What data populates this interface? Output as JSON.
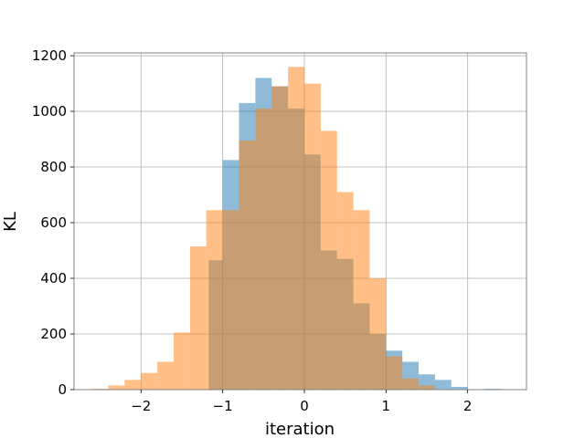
{
  "chart_data": {
    "type": "bar",
    "title": "",
    "xlabel": "iteration",
    "ylabel": "KL",
    "xlim": [
      -2.82,
      2.72
    ],
    "ylim": [
      0,
      1210
    ],
    "grid": true,
    "legend": "none",
    "xticks": [
      -2,
      -1,
      0,
      1,
      2
    ],
    "xtick_labels": [
      "−2",
      "−1",
      "0",
      "1",
      "2"
    ],
    "yticks": [
      0,
      200,
      400,
      600,
      800,
      1000,
      1200
    ],
    "ytick_labels": [
      "0",
      "200",
      "400",
      "600",
      "800",
      "1000",
      "1200"
    ],
    "series": [
      {
        "color": "#1f77b4",
        "opacity": 0.5,
        "bin_edges": [
          -1.17,
          -1.0,
          -0.8,
          -0.6,
          -0.4,
          -0.2,
          0.0,
          0.2,
          0.4,
          0.6,
          0.8,
          1.0,
          1.2,
          1.4,
          1.6,
          1.8,
          2.0,
          2.2,
          2.4
        ],
        "counts": [
          465,
          825,
          1030,
          1120,
          1090,
          1010,
          845,
          500,
          470,
          310,
          200,
          140,
          100,
          55,
          35,
          10,
          0,
          3
        ]
      },
      {
        "color": "#ff7f0e",
        "opacity": 0.5,
        "bin_edges": [
          -2.6,
          -2.4,
          -2.2,
          -2.0,
          -1.8,
          -1.6,
          -1.4,
          -1.2,
          -1.0,
          -0.8,
          -0.6,
          -0.4,
          -0.2,
          0.0,
          0.2,
          0.4,
          0.6,
          0.8,
          1.0,
          1.2,
          1.4,
          1.6
        ],
        "counts": [
          3,
          15,
          35,
          60,
          100,
          205,
          515,
          645,
          645,
          895,
          1010,
          1090,
          1160,
          1100,
          930,
          710,
          645,
          400,
          120,
          40,
          15
        ]
      }
    ]
  }
}
